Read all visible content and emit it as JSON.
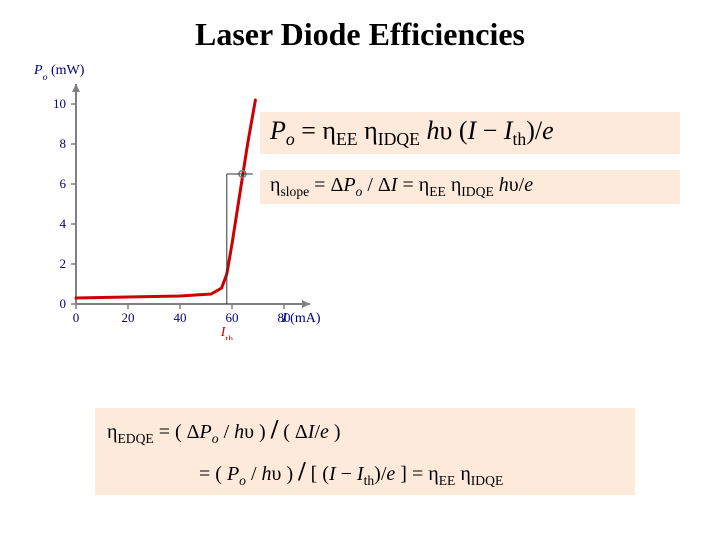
{
  "title": "Laser Diode Efficiencies",
  "chart": {
    "type": "line",
    "ylabel": "Pₒ (mW)",
    "xlabel": "I (mA)",
    "xlim": [
      0,
      90
    ],
    "ylim": [
      0,
      11
    ],
    "xticks": [
      0,
      20,
      40,
      60,
      80
    ],
    "yticks": [
      0,
      2,
      4,
      6,
      8,
      10
    ],
    "ith_label": "Iₜₕ",
    "ith_x": 58,
    "curve_points_before_threshold": [
      [
        0,
        0.3
      ],
      [
        20,
        0.35
      ],
      [
        40,
        0.4
      ],
      [
        52,
        0.5
      ],
      [
        56,
        0.8
      ]
    ],
    "curve_points_after_threshold": [
      [
        56,
        0.8
      ],
      [
        58,
        1.5
      ],
      [
        60,
        3.0
      ],
      [
        63,
        5.5
      ],
      [
        66,
        8.0
      ],
      [
        69,
        10.2
      ]
    ],
    "axis_color": "#808080",
    "tick_color": "#808080",
    "curve_color": "#cc0000",
    "guide_color": "#333333",
    "marker_color": "#808080",
    "label_color": "#000080",
    "label_fontsize": 14,
    "label_fontstyle": "italic",
    "tick_fontsize": 13,
    "curve_width": 3,
    "axis_width": 2
  },
  "equations": {
    "e1": {
      "lhs_var": "P",
      "lhs_sub": "o"
    },
    "e2": {
      "sub": "slope"
    },
    "e3": {
      "sub": "EDQE"
    },
    "symbols": {
      "eta": "η",
      "nu": "υ",
      "Delta": "Δ",
      "EE": "EE",
      "IDQE": "IDQE",
      "th": "th"
    }
  },
  "colors": {
    "title": "#000000",
    "eq_bg": "#fdeada",
    "eq_text": "#000000"
  }
}
